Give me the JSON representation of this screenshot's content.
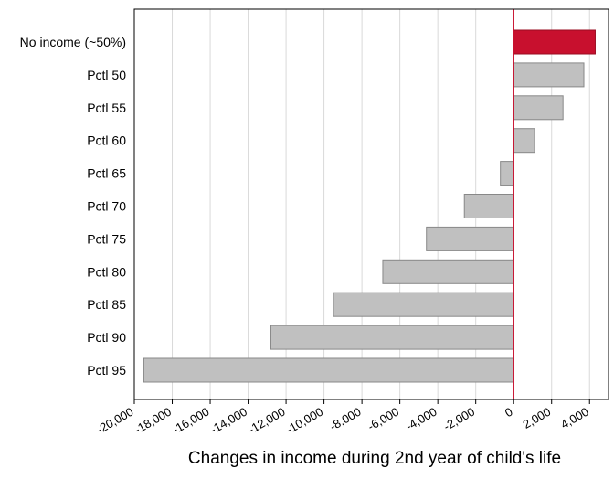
{
  "chart_data": {
    "type": "bar",
    "orientation": "horizontal",
    "title": "",
    "xlabel": "Changes in income during 2nd year of child's life",
    "ylabel": "",
    "xlim": [
      -20000,
      5000
    ],
    "grid": true,
    "legend": "none",
    "x_ticks": [
      -20000,
      -18000,
      -16000,
      -14000,
      -12000,
      -10000,
      -8000,
      -6000,
      -4000,
      -2000,
      0,
      2000,
      4000
    ],
    "x_tick_labels": [
      "-20,000",
      "-18,000",
      "-16,000",
      "-14,000",
      "-12,000",
      "-10,000",
      "-8,000",
      "-6,000",
      "-4,000",
      "-2,000",
      "0",
      "2,000",
      "4,000"
    ],
    "categories": [
      "No income (~50%)",
      "Pctl 50",
      "Pctl 55",
      "Pctl 60",
      "Pctl 65",
      "Pctl 70",
      "Pctl 75",
      "Pctl 80",
      "Pctl 85",
      "Pctl 90",
      "Pctl 95"
    ],
    "values": [
      4300,
      3700,
      2600,
      1100,
      -700,
      -2600,
      -4600,
      -6900,
      -9500,
      -12800,
      -19500
    ],
    "colors": {
      "highlight_bar": "#C8102E",
      "bar": "#C0C0C0",
      "bar_stroke": "#888888",
      "zero_line": "#C8102E",
      "grid": "#D9D9D9",
      "axis": "#000000"
    },
    "highlight_index": 0
  }
}
